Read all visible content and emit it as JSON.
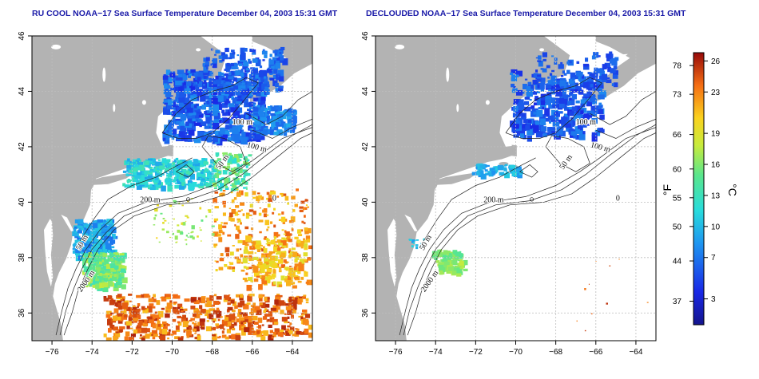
{
  "colors": {
    "land": "#b3b3b3",
    "title": "#1a1aa8",
    "contour": "#222222",
    "grid": "#bdbdbd"
  },
  "left_map": {
    "title": "RU COOL NOAA−17 Sea Surface Temperature December 04, 2003 15:31 GMT",
    "lon_ticks": [
      "−76",
      "−74",
      "−72",
      "−70",
      "−68",
      "−66",
      "−64"
    ],
    "lat_ticks": [
      "36",
      "38",
      "40",
      "42",
      "44",
      "46"
    ],
    "contour_labels": [
      "100 m",
      "100 m",
      "50 m",
      "200 m",
      "50 m",
      "2000 m",
      "0"
    ]
  },
  "right_map": {
    "title": "DECLOUDED NOAA−17 Sea Surface Temperature December 04, 2003 15:31 GMT",
    "lon_ticks": [
      "−76",
      "−74",
      "−72",
      "−70",
      "−68",
      "−66",
      "−64"
    ],
    "lat_ticks": [
      "36",
      "38",
      "40",
      "42",
      "44",
      "46"
    ],
    "contour_labels": [
      "100 m",
      "100 m",
      "50 m",
      "200 m",
      "50 m",
      "2000 m",
      "0"
    ]
  },
  "colorbar": {
    "fahrenheit_ticks": [
      "37",
      "44",
      "50",
      "55",
      "60",
      "66",
      "73",
      "78"
    ],
    "celsius_ticks": [
      "3",
      "7",
      "10",
      "13",
      "16",
      "19",
      "23",
      "26"
    ],
    "fahrenheit_label": "°F",
    "celsius_label": "°C"
  }
}
